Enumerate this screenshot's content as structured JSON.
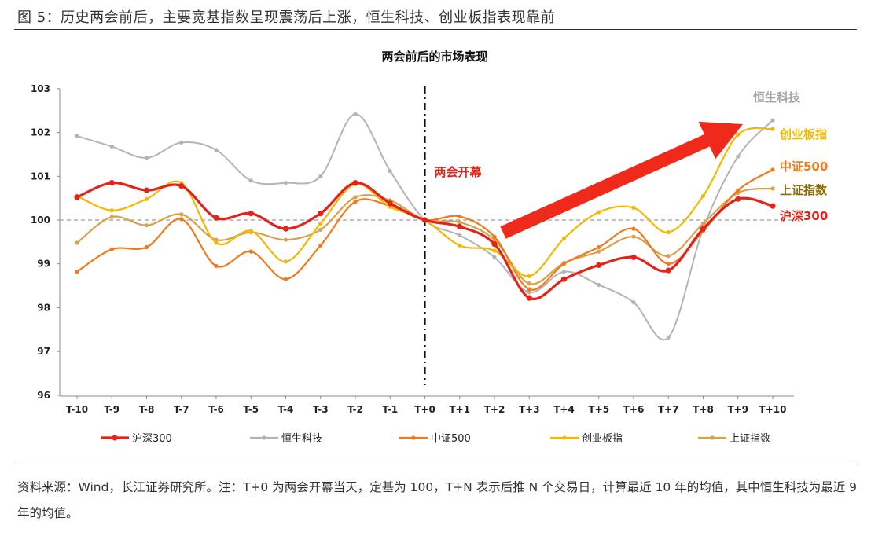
{
  "figure_title": "图 5：历史两会前后，主要宽基指数呈现震荡后上涨，恒生科技、创业板指表现靠前",
  "note": "资料来源：Wind，长江证券研究所。注：T+0 为两会开幕当天，定基为 100，T+N 表示后推 N 个交易日，计算最近 10 年的均值，其中恒生科技为最近 9 年的均值。",
  "chart_data": {
    "type": "line",
    "title": "两会前后的市场表现",
    "categories": [
      "T-10",
      "T-9",
      "T-8",
      "T-7",
      "T-6",
      "T-5",
      "T-4",
      "T-3",
      "T-2",
      "T-1",
      "T+0",
      "T+1",
      "T+2",
      "T+3",
      "T+4",
      "T+5",
      "T+6",
      "T+7",
      "T+8",
      "T+9",
      "T+10"
    ],
    "ylim": [
      96,
      103
    ],
    "yticks": [
      96,
      97,
      98,
      99,
      100,
      101,
      102,
      103
    ],
    "reference_line": 100,
    "event_marker": {
      "category": "T+0",
      "label": "两会开幕"
    },
    "series": [
      {
        "name": "沪深300",
        "color": "#e2231a",
        "end_label": "沪深300",
        "emphasis": true,
        "values": [
          100.52,
          100.85,
          100.68,
          100.78,
          100.05,
          100.15,
          99.8,
          100.15,
          100.85,
          100.38,
          100.0,
          99.85,
          99.45,
          98.22,
          98.65,
          98.97,
          99.15,
          98.85,
          99.8,
          100.48,
          100.32
        ]
      },
      {
        "name": "恒生科技",
        "color": "#b4b4b4",
        "end_label": "恒生科技",
        "values": [
          101.92,
          101.68,
          101.42,
          101.77,
          101.6,
          100.9,
          100.85,
          101.0,
          102.42,
          101.12,
          100.0,
          99.65,
          99.15,
          98.35,
          98.82,
          98.52,
          98.12,
          97.32,
          99.8,
          101.45,
          102.28
        ]
      },
      {
        "name": "中证500",
        "color": "#f07a1b",
        "end_label": "中证500",
        "values": [
          98.82,
          99.33,
          99.38,
          100.02,
          98.95,
          99.28,
          98.65,
          99.42,
          100.42,
          100.32,
          100.0,
          100.08,
          99.62,
          98.42,
          99.0,
          99.38,
          99.8,
          99.0,
          99.75,
          100.68,
          101.15
        ]
      },
      {
        "name": "创业板指",
        "color": "#f5b800",
        "end_label": "创业板指",
        "values": [
          100.55,
          100.22,
          100.48,
          100.85,
          99.48,
          99.75,
          99.05,
          99.92,
          100.82,
          100.3,
          100.0,
          99.42,
          99.3,
          98.72,
          99.58,
          100.18,
          100.28,
          99.72,
          100.55,
          101.95,
          102.08
        ]
      },
      {
        "name": "上证指数",
        "color": "#d8a24a",
        "end_label": "上证指数",
        "values": [
          99.48,
          100.07,
          99.88,
          100.13,
          99.55,
          99.72,
          99.55,
          99.78,
          100.52,
          100.45,
          100.0,
          99.95,
          99.55,
          98.55,
          99.02,
          99.28,
          99.62,
          99.18,
          99.92,
          100.62,
          100.72
        ]
      }
    ],
    "end_label_colors": {
      "沪深300": "#e2231a",
      "恒生科技": "#a6a6a6",
      "中证500": "#f07a1b",
      "创业板指": "#f5b800",
      "上证指数": "#8a6a00"
    },
    "annotation": "rising red arrow from T+2 to T+9",
    "legend_position": "bottom",
    "grid": false
  }
}
